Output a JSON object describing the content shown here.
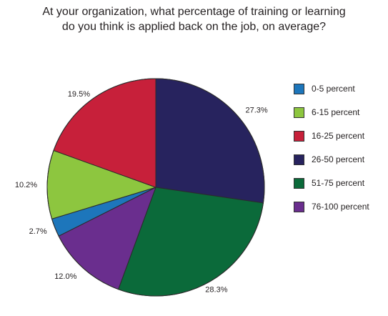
{
  "chart_data": {
    "type": "pie",
    "title_lines": [
      "At your organization, what percentage of training or learning",
      "do you think is applied back on the job, on average?"
    ],
    "slices": [
      {
        "category": "26-50 percent",
        "label": "27.3%",
        "value": 27.3,
        "color": "#27235e"
      },
      {
        "category": "51-75 percent",
        "label": "28.3%",
        "value": 28.3,
        "color": "#0b6a3a"
      },
      {
        "category": "76-100 percent",
        "label": "12.0%",
        "value": 12.0,
        "color": "#6a2e8e"
      },
      {
        "category": "0-5 percent",
        "label": "2.7%",
        "value": 2.7,
        "color": "#1d76bb"
      },
      {
        "category": "6-15 percent",
        "label": "10.2%",
        "value": 10.2,
        "color": "#8dc63f"
      },
      {
        "category": "16-25 percent",
        "label": "19.5%",
        "value": 19.5,
        "color": "#c7203a"
      }
    ],
    "legend": [
      {
        "label": "0-5 percent",
        "color": "#1d76bb"
      },
      {
        "label": "6-15 percent",
        "color": "#8dc63f"
      },
      {
        "label": "16-25 percent",
        "color": "#c7203a"
      },
      {
        "label": "26-50 percent",
        "color": "#27235e"
      },
      {
        "label": "51-75 percent",
        "color": "#0b6a3a"
      },
      {
        "label": "76-100 percent",
        "color": "#6a2e8e"
      }
    ],
    "legend_position": "right"
  }
}
